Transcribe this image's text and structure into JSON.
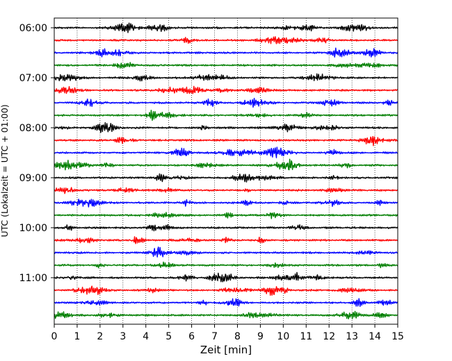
{
  "chart_data": {
    "type": "line",
    "title": "",
    "xlabel": "Zeit  [min]",
    "ylabel": "UTC (Lokalzeit = UTC + 01:00)",
    "xlim": [
      0,
      15
    ],
    "x_ticks": [
      "0",
      "1",
      "2",
      "3",
      "4",
      "5",
      "6",
      "7",
      "8",
      "9",
      "10",
      "11",
      "12",
      "13",
      "14",
      "15"
    ],
    "y_ticks": [
      "06:00",
      "07:00",
      "08:00",
      "09:00",
      "10:00",
      "11:00"
    ],
    "trace_interval_min": 15,
    "first_trace": "06:00",
    "trace_count": 24,
    "trace_colors": [
      "#000000",
      "#ff0000",
      "#0000ff",
      "#007f00"
    ],
    "grid": "vertical dotted lines at each minute"
  }
}
